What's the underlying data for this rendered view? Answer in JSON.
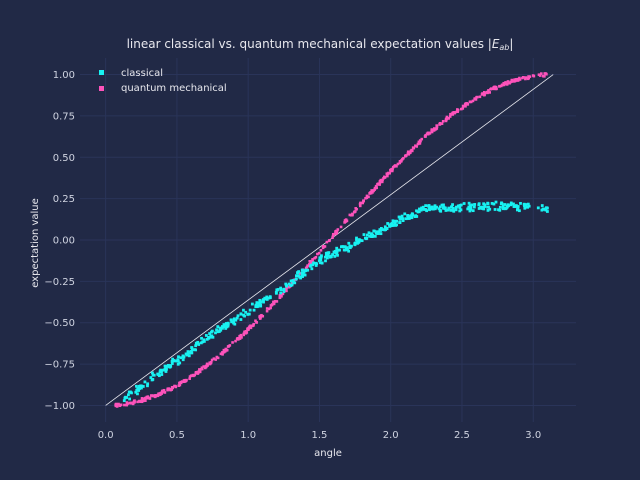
{
  "chart_data": {
    "type": "scatter",
    "title": "linear classical vs. quantum mechanical expectation values |E_ab|",
    "title_text": "linear classical vs. quantum mechanical expectation values |",
    "title_math_main": "E",
    "title_math_sub": "ab",
    "title_close": "|",
    "xlabel": "angle",
    "ylabel": "expectation value",
    "xlim": [
      -0.18,
      3.3
    ],
    "ylim": [
      -1.1,
      1.1
    ],
    "x_ticks": [
      "0.0",
      "0.5",
      "1.0",
      "1.5",
      "2.0",
      "2.5",
      "3.0"
    ],
    "y_ticks": [
      "−1.00",
      "−0.75",
      "−0.50",
      "−0.25",
      "0.00",
      "0.25",
      "0.50",
      "0.75",
      "1.00"
    ],
    "grid": true,
    "legend_position": "top-left",
    "series": [
      {
        "name": "classical",
        "color": "#18f2f2",
        "marker": "square",
        "description": "noisy linear rise from (0.13,-0.97) to about (2.3,0.20), then plateau near 0.20 up to x=3.1",
        "samples": [
          {
            "x": 0.13,
            "y": -0.97
          },
          {
            "x": 0.3,
            "y": -0.85
          },
          {
            "x": 0.5,
            "y": -0.73
          },
          {
            "x": 0.75,
            "y": -0.57
          },
          {
            "x": 1.0,
            "y": -0.43
          },
          {
            "x": 1.25,
            "y": -0.29
          },
          {
            "x": 1.5,
            "y": -0.12
          },
          {
            "x": 1.75,
            "y": -0.02
          },
          {
            "x": 2.0,
            "y": 0.09
          },
          {
            "x": 2.25,
            "y": 0.19
          },
          {
            "x": 2.5,
            "y": 0.2
          },
          {
            "x": 2.75,
            "y": 0.2
          },
          {
            "x": 3.0,
            "y": 0.2
          },
          {
            "x": 3.1,
            "y": 0.19
          }
        ]
      },
      {
        "name": "quantum mechanical",
        "color": "#fe53bb",
        "marker": "square",
        "description": "smooth curve y = -cos(x) for x in [0.07, 3.1]",
        "samples": [
          {
            "x": 0.07,
            "y": -1.0
          },
          {
            "x": 0.5,
            "y": -0.88
          },
          {
            "x": 1.0,
            "y": -0.54
          },
          {
            "x": 1.5,
            "y": -0.07
          },
          {
            "x": 2.0,
            "y": 0.42
          },
          {
            "x": 2.5,
            "y": 0.8
          },
          {
            "x": 3.0,
            "y": 0.99
          },
          {
            "x": 3.1,
            "y": 1.0
          }
        ]
      }
    ],
    "reference_line": {
      "from": [
        0.0,
        -1.0
      ],
      "to": [
        3.14,
        1.0
      ],
      "color": "#e8e8ee"
    }
  }
}
